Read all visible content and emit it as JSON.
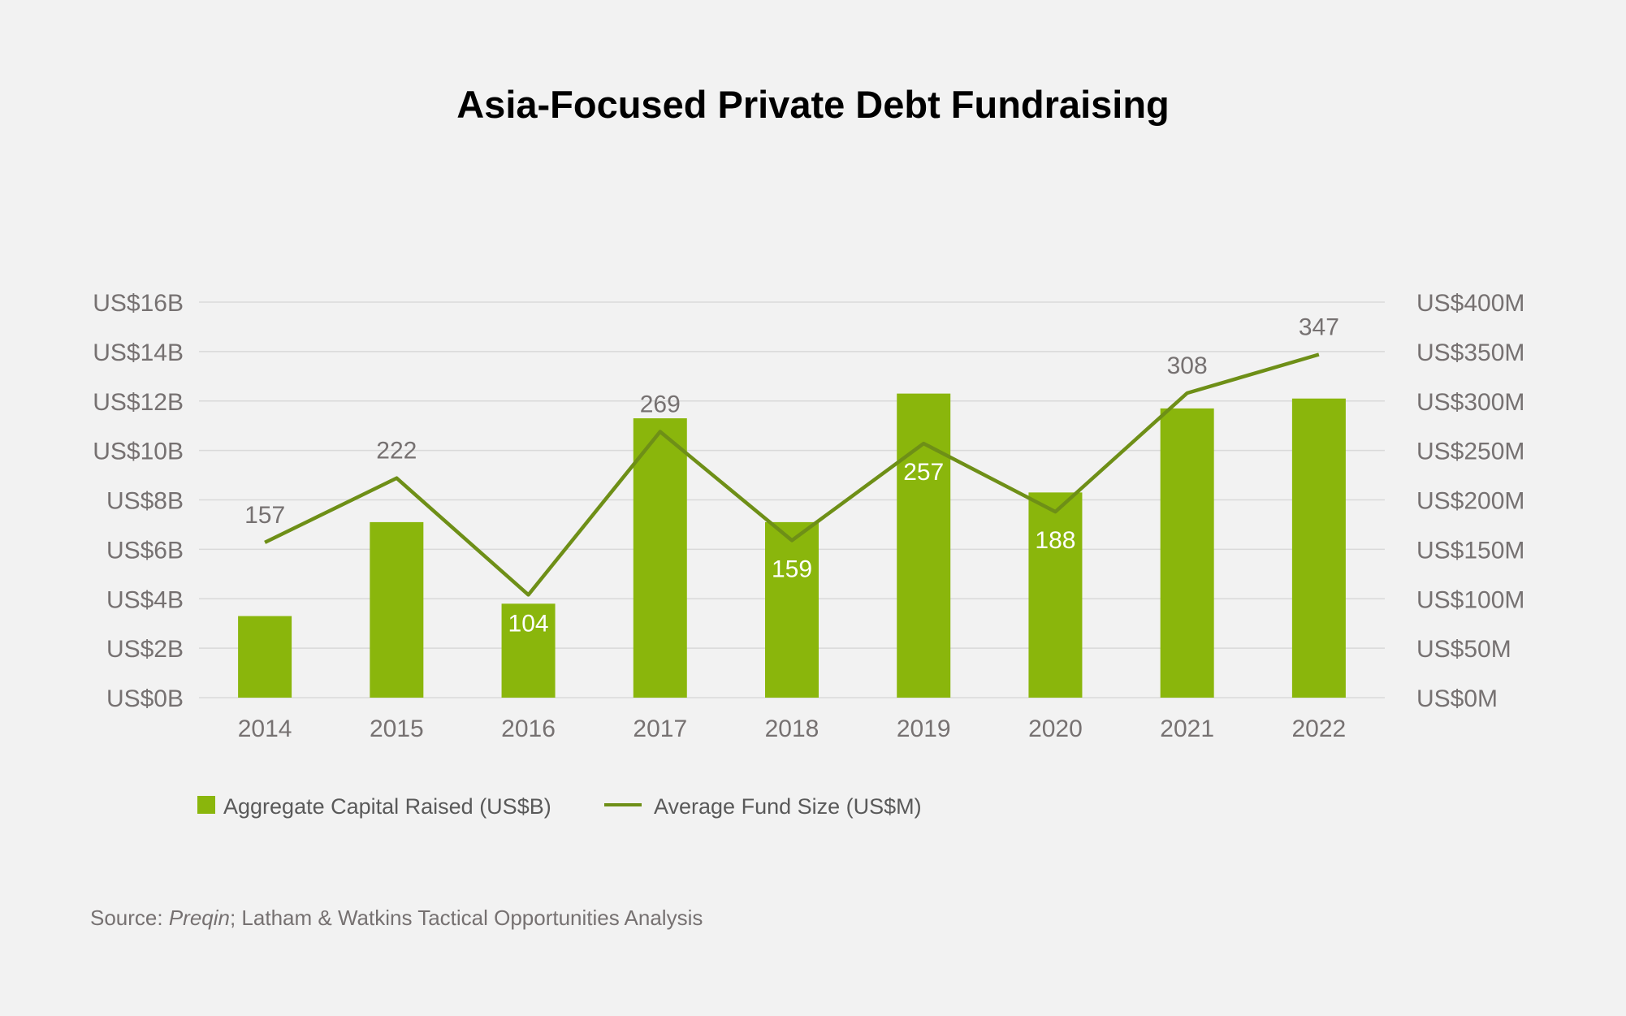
{
  "chart_data": {
    "type": "bar+line",
    "title": "Asia-Focused Private Debt Fundraising",
    "categories": [
      "2014",
      "2015",
      "2016",
      "2017",
      "2018",
      "2019",
      "2020",
      "2021",
      "2022"
    ],
    "series": [
      {
        "name": "Aggregate Capital Raised (US$B)",
        "type": "bar",
        "axis": "left",
        "values": [
          3.3,
          7.1,
          3.8,
          11.3,
          7.1,
          12.3,
          8.3,
          11.7,
          12.1
        ]
      },
      {
        "name": "Average Fund Size (US$M)",
        "type": "line",
        "axis": "right",
        "values": [
          157,
          222,
          104,
          269,
          159,
          257,
          188,
          308,
          347
        ],
        "labels": [
          "157",
          "222",
          "104",
          "269",
          "159",
          "257",
          "188",
          "308",
          "347"
        ],
        "label_placement": [
          "above",
          "above",
          "inside",
          "above",
          "inside",
          "inside",
          "inside",
          "above",
          "above"
        ]
      }
    ],
    "y_left": {
      "ylim": [
        0,
        16
      ],
      "tick_values": [
        0,
        2,
        4,
        6,
        8,
        10,
        12,
        14,
        16
      ],
      "tick_labels": [
        "US$0B",
        "US$2B",
        "US$4B",
        "US$6B",
        "US$8B",
        "US$10B",
        "US$12B",
        "US$14B",
        "US$16B"
      ]
    },
    "y_right": {
      "ylim": [
        0,
        400
      ],
      "tick_values": [
        0,
        50,
        100,
        150,
        200,
        250,
        300,
        350,
        400
      ],
      "tick_labels": [
        "US$0M",
        "US$50M",
        "US$100M",
        "US$150M",
        "US$200M",
        "US$250M",
        "US$300M",
        "US$350M",
        "US$400M"
      ]
    },
    "grid": true,
    "legend_position": "bottom-left",
    "colors": {
      "bar": "#8ab60c",
      "line": "#6e8f17",
      "grid": "#d9d9d9",
      "tick_text": "#767171",
      "label_on_bar": "#ffffff"
    }
  },
  "source": {
    "prefix": "Source: ",
    "italic": "Preqin",
    "suffix": "; Latham & Watkins Tactical Opportunities Analysis"
  }
}
